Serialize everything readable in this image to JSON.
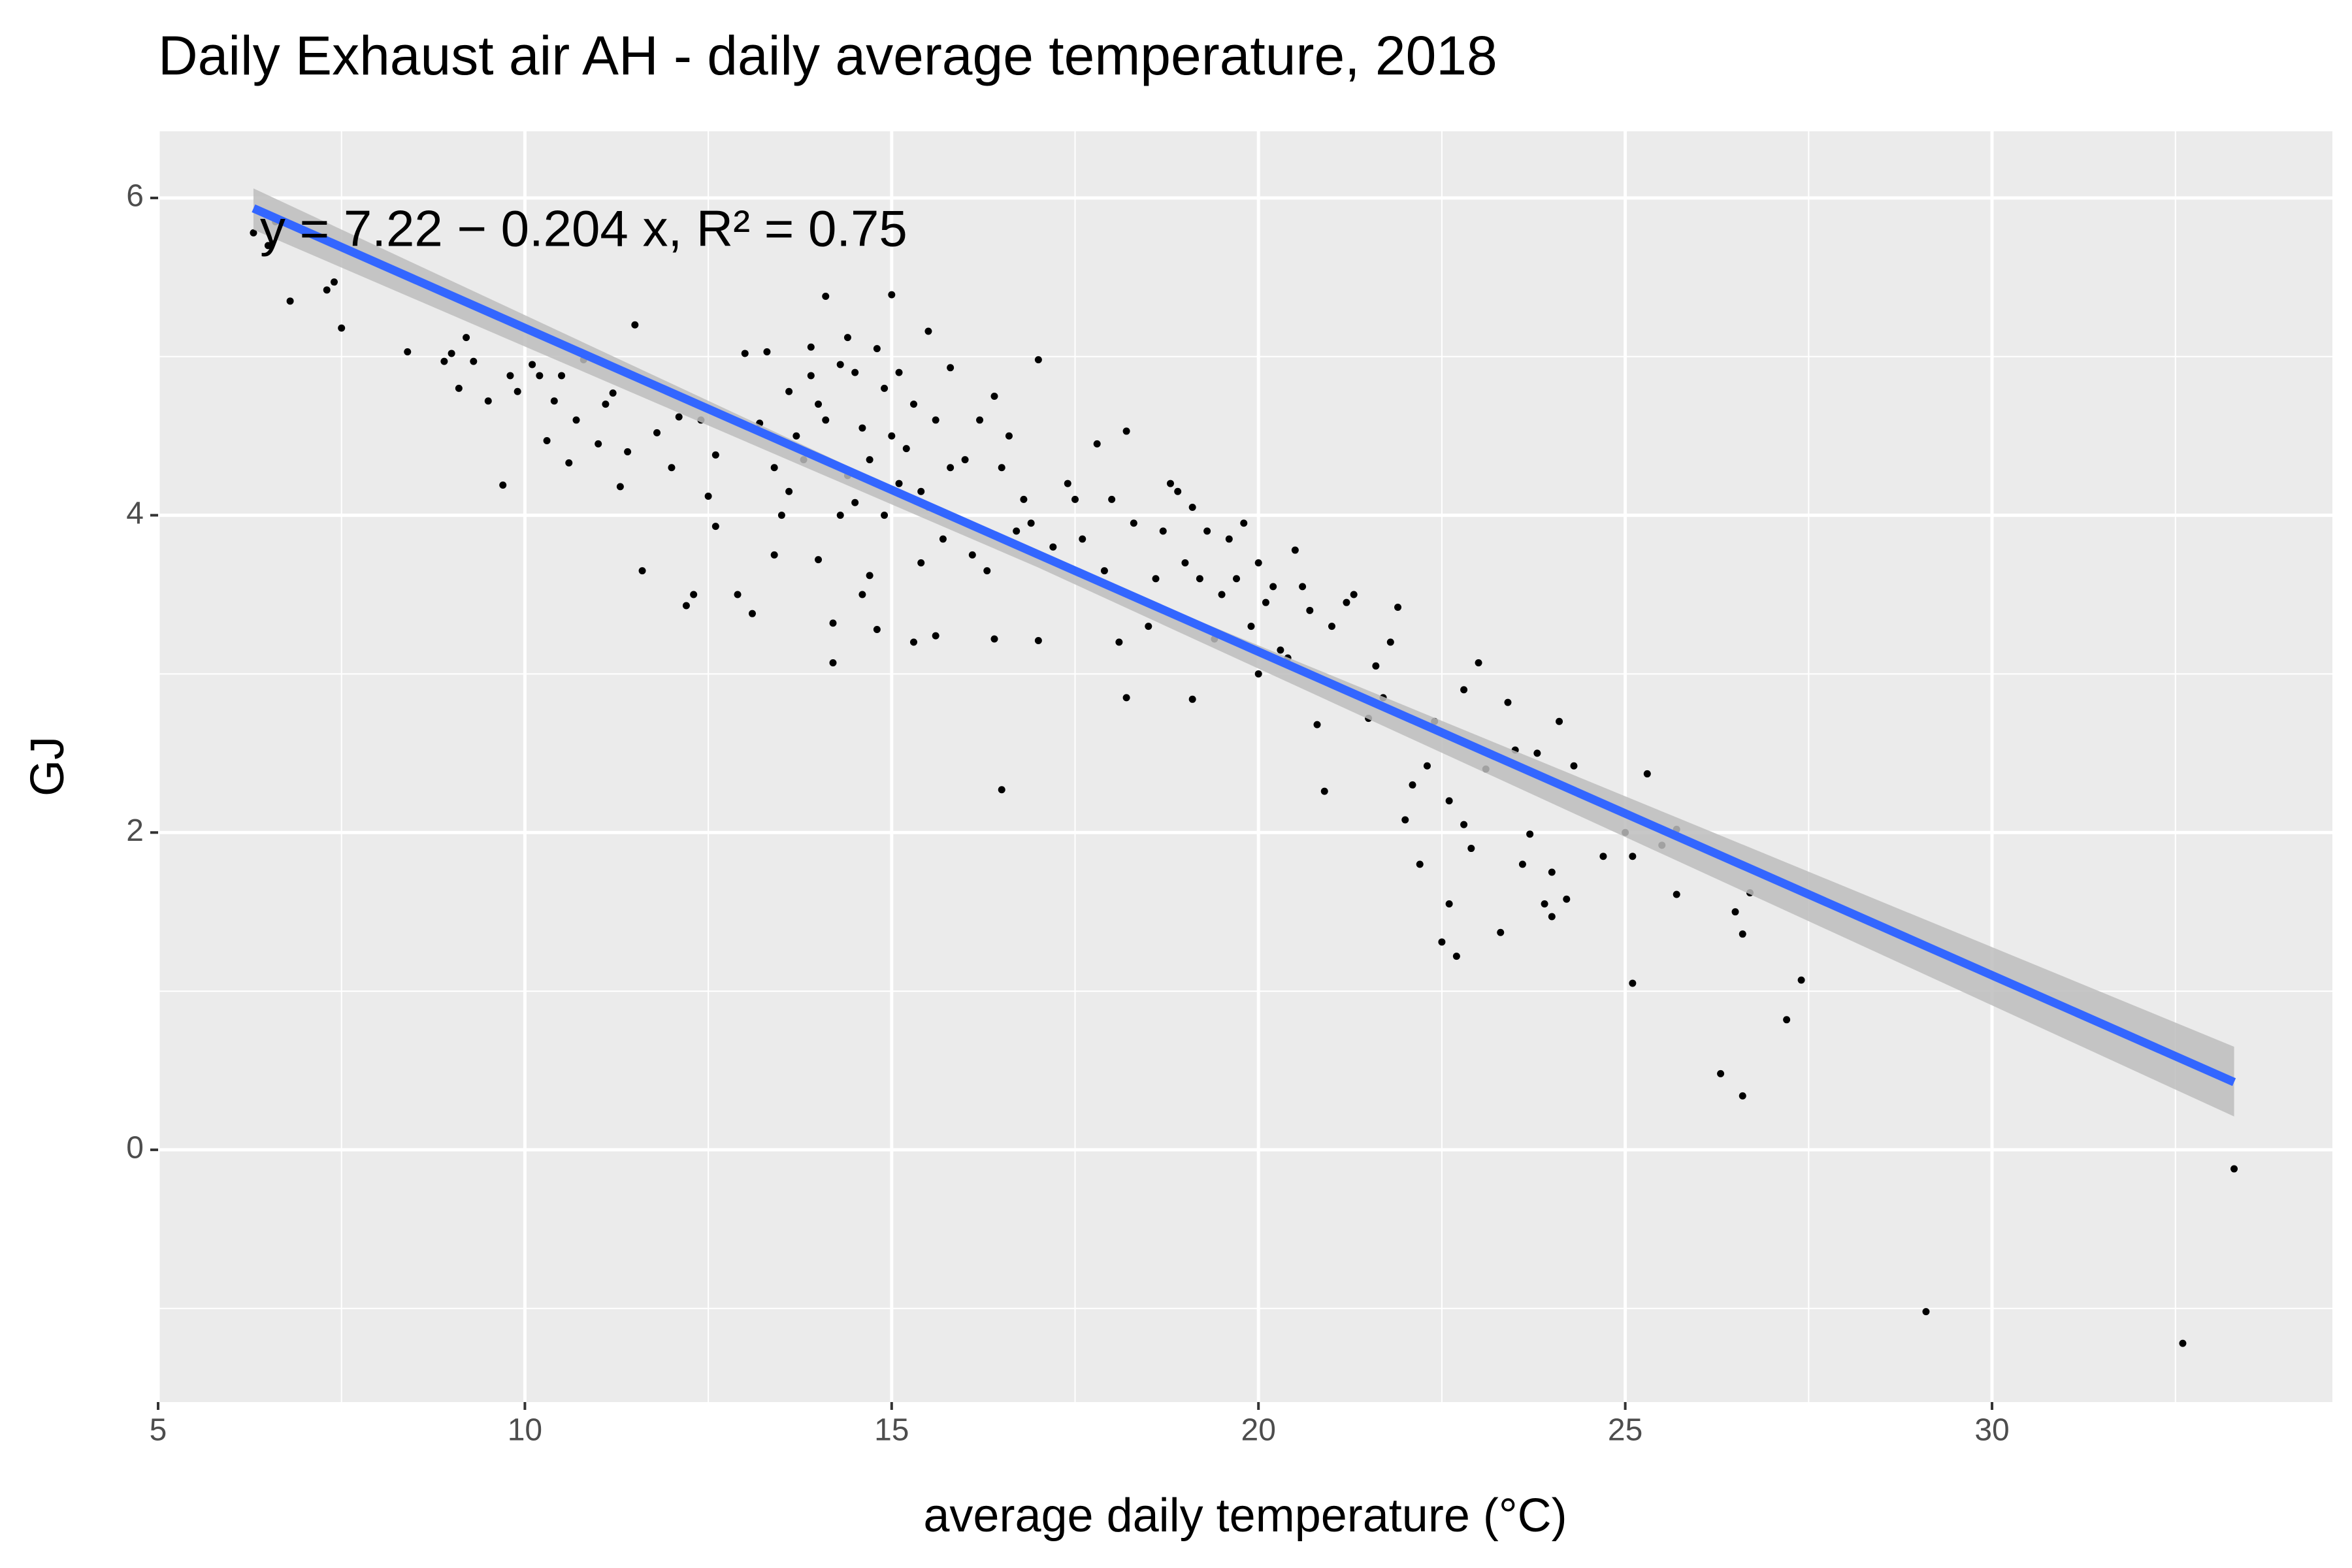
{
  "chart_data": {
    "type": "scatter",
    "title": "Daily Exhaust air AH - daily average temperature, 2018",
    "x_label": "average daily temperature (°C)",
    "y_label": "GJ",
    "annotation": "y = 7.22 − 0.204 x, R² = 0.75",
    "xlim": [
      5,
      34.64
    ],
    "ylim": [
      -1.59,
      6.42
    ],
    "xticks": [
      5,
      10,
      15,
      20,
      25,
      30
    ],
    "yticks": [
      0,
      2,
      4,
      6
    ],
    "grid": true,
    "color": "#000000",
    "fit": {
      "intercept": 7.22,
      "slope": -0.204,
      "x_range": [
        6.3,
        33.3
      ],
      "color": "#3366ff",
      "ci_x": [
        6.3,
        17,
        33.3
      ],
      "ci_low": [
        5.8,
        3.67,
        0.21
      ],
      "ci_high": [
        6.06,
        3.75,
        0.65
      ],
      "ci_color": "#bdbdbd"
    },
    "x": [
      6.3,
      6.5,
      6.8,
      7.3,
      7.4,
      7.5,
      6.6,
      8.4,
      8.9,
      9.0,
      9.1,
      9.2,
      9.3,
      9.5,
      9.7,
      9.8,
      9.9,
      10.1,
      10.2,
      10.3,
      10.4,
      10.5,
      10.6,
      10.7,
      10.8,
      11.0,
      11.1,
      11.2,
      11.3,
      11.4,
      11.5,
      11.6,
      11.8,
      12.0,
      12.1,
      12.2,
      12.3,
      12.4,
      12.5,
      12.6,
      12.6,
      12.9,
      13.0,
      13.1,
      13.2,
      13.3,
      13.4,
      13.4,
      13.5,
      13.6,
      13.6,
      13.7,
      13.8,
      13.9,
      13.9,
      14.0,
      14.0,
      14.1,
      14.1,
      14.2,
      14.2,
      14.3,
      14.3,
      14.4,
      14.4,
      14.5,
      14.5,
      14.6,
      14.6,
      14.7,
      14.7,
      14.8,
      14.8,
      14.9,
      14.9,
      15.0,
      15.0,
      15.1,
      15.1,
      15.2,
      15.3,
      15.3,
      15.4,
      15.4,
      15.5,
      15.5,
      15.6,
      15.6,
      15.7,
      15.8,
      15.8,
      15.9,
      16.0,
      16.1,
      16.2,
      16.3,
      16.4,
      16.4,
      16.5,
      16.5,
      16.6,
      16.7,
      16.8,
      16.9,
      17.0,
      17.0,
      17.2,
      17.4,
      17.5,
      17.6,
      17.8,
      17.9,
      18.0,
      18.1,
      18.2,
      18.2,
      18.3,
      18.5,
      18.6,
      18.7,
      18.8,
      18.9,
      19.0,
      19.1,
      19.1,
      19.2,
      19.3,
      19.4,
      19.5,
      19.6,
      19.7,
      19.8,
      19.9,
      20.0,
      20.0,
      20.1,
      20.2,
      20.3,
      20.4,
      20.5,
      20.6,
      20.7,
      20.8,
      20.9,
      21.0,
      21.2,
      21.3,
      21.5,
      21.6,
      21.7,
      21.8,
      21.9,
      22.0,
      22.1,
      22.2,
      22.3,
      22.4,
      22.5,
      22.6,
      22.6,
      22.7,
      22.8,
      22.8,
      22.9,
      23.0,
      23.1,
      23.3,
      23.4,
      23.5,
      23.6,
      23.7,
      23.8,
      23.9,
      24.0,
      24.0,
      24.1,
      24.2,
      24.3,
      24.7,
      25.0,
      25.1,
      25.1,
      25.3,
      25.5,
      25.7,
      25.7,
      26.3,
      26.5,
      26.6,
      26.6,
      26.7,
      27.2,
      27.4,
      29.1,
      32.6,
      33.3
    ],
    "values": [
      5.78,
      5.7,
      5.35,
      5.42,
      5.47,
      5.18,
      5.85,
      5.03,
      4.97,
      5.02,
      4.8,
      5.12,
      4.97,
      4.72,
      4.19,
      4.88,
      4.78,
      4.95,
      4.88,
      4.47,
      4.72,
      4.88,
      4.33,
      4.6,
      4.98,
      4.45,
      4.7,
      4.77,
      4.18,
      4.4,
      5.2,
      3.65,
      4.52,
      4.3,
      4.62,
      3.43,
      3.5,
      4.6,
      4.12,
      3.93,
      4.38,
      3.5,
      5.02,
      3.38,
      4.58,
      5.03,
      3.75,
      4.3,
      4.0,
      4.78,
      4.15,
      4.5,
      4.35,
      5.06,
      4.88,
      4.7,
      3.72,
      5.38,
      4.6,
      3.32,
      3.07,
      4.95,
      4.0,
      5.12,
      4.25,
      4.9,
      4.08,
      3.5,
      4.55,
      3.62,
      4.35,
      3.28,
      5.05,
      4.8,
      4.0,
      5.39,
      4.5,
      4.9,
      4.2,
      4.42,
      3.2,
      4.7,
      3.7,
      4.15,
      5.16,
      4.05,
      4.6,
      3.24,
      3.85,
      4.93,
      4.3,
      3.98,
      4.35,
      3.75,
      4.6,
      3.65,
      4.75,
      3.22,
      2.27,
      4.3,
      4.5,
      3.9,
      4.1,
      3.95,
      4.98,
      3.21,
      3.8,
      4.2,
      4.1,
      3.85,
      4.45,
      3.65,
      4.1,
      3.2,
      4.53,
      2.85,
      3.95,
      3.3,
      3.6,
      3.9,
      4.2,
      4.15,
      3.7,
      2.84,
      4.05,
      3.6,
      3.9,
      3.22,
      3.5,
      3.85,
      3.6,
      3.95,
      3.3,
      3.0,
      3.7,
      3.45,
      3.55,
      3.15,
      3.1,
      3.78,
      3.55,
      3.4,
      2.68,
      2.26,
      3.3,
      3.45,
      3.5,
      2.72,
      3.05,
      2.85,
      3.2,
      3.42,
      2.08,
      2.3,
      1.8,
      2.42,
      2.7,
      1.31,
      1.55,
      2.2,
      1.22,
      2.05,
      2.9,
      1.9,
      3.07,
      2.4,
      1.37,
      2.82,
      2.52,
      1.8,
      1.99,
      2.5,
      1.55,
      1.47,
      1.75,
      2.7,
      1.58,
      2.42,
      1.85,
      2.0,
      1.05,
      1.85,
      2.37,
      1.92,
      1.61,
      2.02,
      0.48,
      1.5,
      1.36,
      0.34,
      1.62,
      0.82,
      1.07,
      -1.02,
      -1.22,
      -0.12
    ]
  }
}
